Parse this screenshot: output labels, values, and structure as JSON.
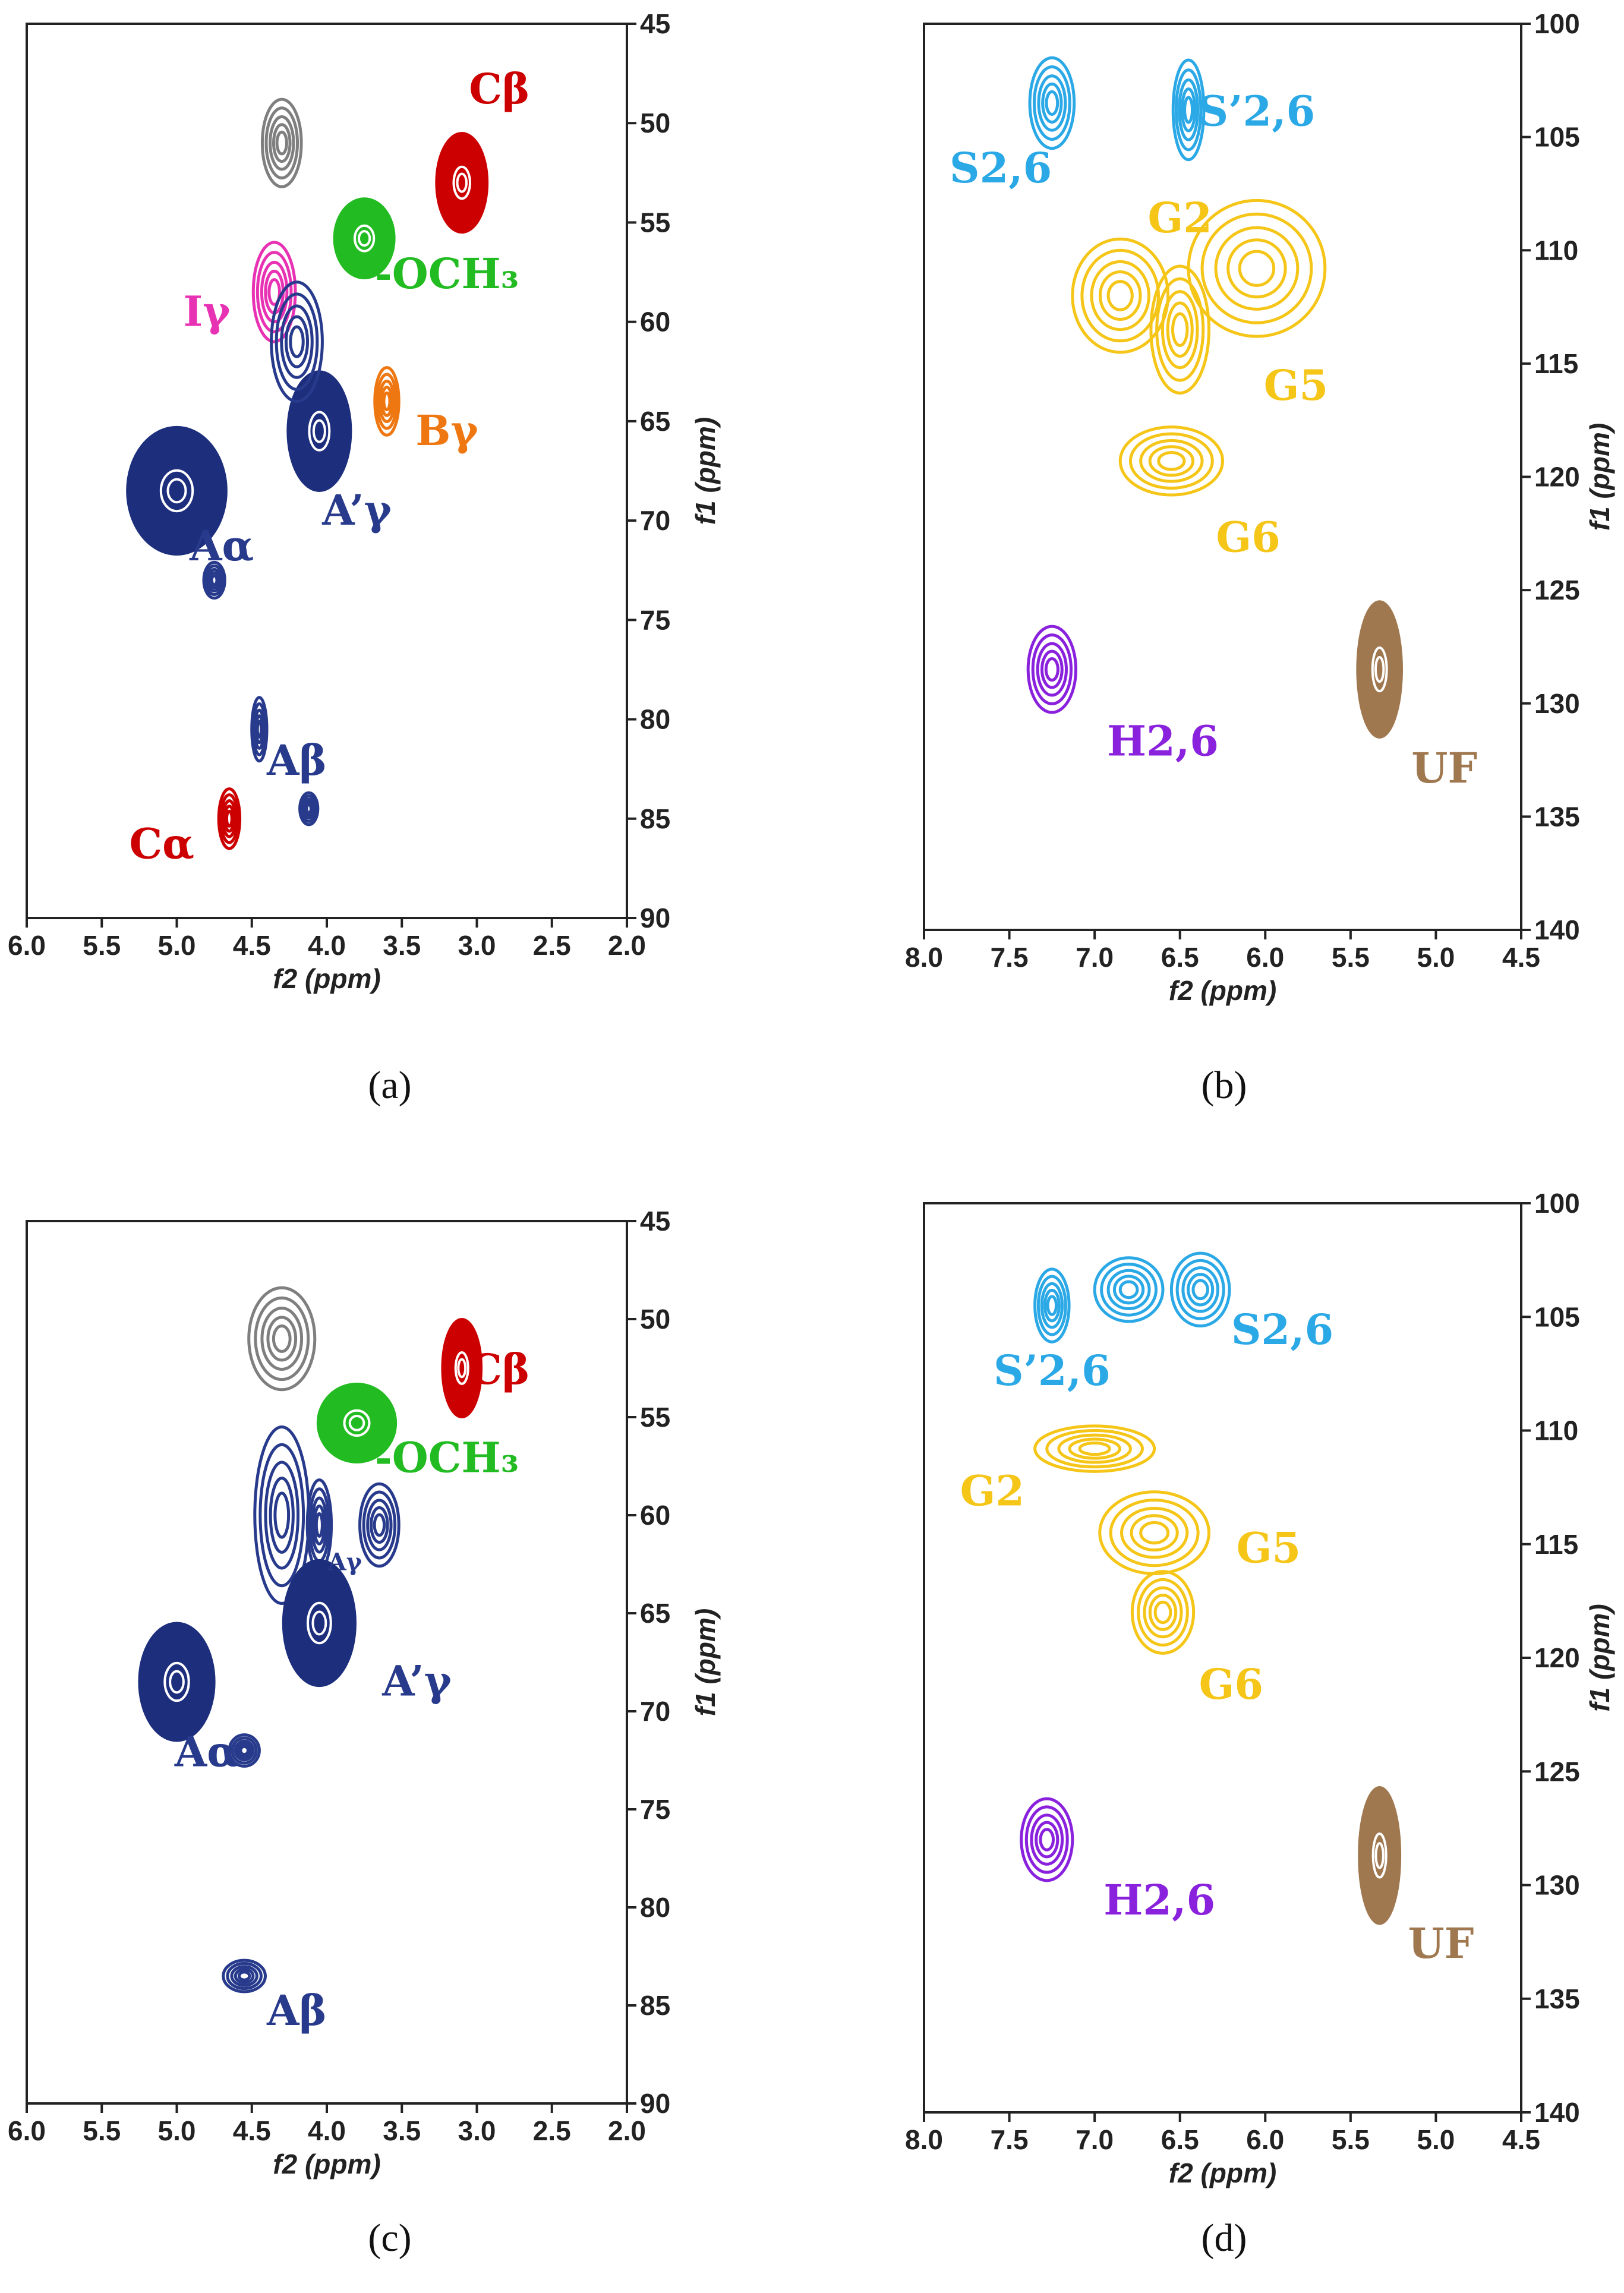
{
  "colors": {
    "gray": "#7f7f7f",
    "red": "#cc0000",
    "green": "#22bb22",
    "magenta": "#e832b4",
    "orange": "#ee7711",
    "navy": "#283a8c",
    "navy_fill": "#1c2e7c",
    "cyan": "#2ba8e6",
    "yellow": "#f5c518",
    "purple": "#8a22dd",
    "brown": "#a07850"
  },
  "chart_data": [
    {
      "type": "contour",
      "caption_letter": "a",
      "xlabel": "f2 (ppm)",
      "ylabel": "f1 (ppm)",
      "xlim": [
        6.0,
        2.0
      ],
      "ylim": [
        90,
        45
      ],
      "xticks": [
        "6.0",
        "5.5",
        "5.0",
        "4.5",
        "4.0",
        "3.5",
        "3.0",
        "2.5",
        "2.0"
      ],
      "yticks": [
        "45",
        "50",
        "55",
        "60",
        "65",
        "70",
        "75",
        "80",
        "85",
        "90"
      ],
      "peaks": [
        {
          "x": 4.3,
          "y": 51.0,
          "rx": 0.13,
          "ry": 2.2,
          "color": "gray",
          "style": "ring"
        },
        {
          "x": 3.1,
          "y": 53.0,
          "rx": 0.17,
          "ry": 2.5,
          "color": "red",
          "style": "filled"
        },
        {
          "x": 3.75,
          "y": 55.8,
          "rx": 0.2,
          "ry": 2.0,
          "color": "green",
          "style": "filled"
        },
        {
          "x": 4.35,
          "y": 58.5,
          "rx": 0.14,
          "ry": 2.5,
          "color": "magenta",
          "style": "ring"
        },
        {
          "x": 3.6,
          "y": 64.0,
          "rx": 0.08,
          "ry": 1.7,
          "color": "orange",
          "style": "ring"
        },
        {
          "x": 4.05,
          "y": 65.5,
          "rx": 0.21,
          "ry": 3.0,
          "color": "navy",
          "style": "filled"
        },
        {
          "x": 4.2,
          "y": 61.0,
          "rx": 0.17,
          "ry": 3.0,
          "color": "navy",
          "style": "ring"
        },
        {
          "x": 5.0,
          "y": 68.5,
          "rx": 0.33,
          "ry": 3.2,
          "color": "navy",
          "style": "filled"
        },
        {
          "x": 4.75,
          "y": 73.0,
          "rx": 0.07,
          "ry": 0.9,
          "color": "navy",
          "style": "ring"
        },
        {
          "x": 4.45,
          "y": 80.5,
          "rx": 0.05,
          "ry": 1.6,
          "color": "navy",
          "style": "ring"
        },
        {
          "x": 4.12,
          "y": 84.5,
          "rx": 0.06,
          "ry": 0.8,
          "color": "navy",
          "style": "ring"
        },
        {
          "x": 4.65,
          "y": 85.0,
          "rx": 0.07,
          "ry": 1.5,
          "color": "red",
          "style": "ring"
        }
      ],
      "labels": [
        {
          "text": "Cβ",
          "x": 2.85,
          "y": 49.0,
          "color": "red"
        },
        {
          "text": "-OCH₃",
          "x": 3.2,
          "y": 58.3,
          "color": "green"
        },
        {
          "text": "Iγ",
          "x": 4.8,
          "y": 60.2,
          "color": "magenta"
        },
        {
          "text": "Bγ",
          "x": 3.2,
          "y": 66.2,
          "color": "orange"
        },
        {
          "text": "A’γ",
          "x": 3.8,
          "y": 70.2,
          "color": "navy"
        },
        {
          "text": "Aα",
          "x": 4.7,
          "y": 72.0,
          "color": "navy"
        },
        {
          "text": "Aβ",
          "x": 4.2,
          "y": 82.8,
          "color": "navy"
        },
        {
          "text": "Cα",
          "x": 5.1,
          "y": 87.0,
          "color": "red"
        }
      ]
    },
    {
      "type": "contour",
      "caption_letter": "b",
      "xlabel": "f2 (ppm)",
      "ylabel": "f1 (ppm)",
      "xlim": [
        8.0,
        4.5
      ],
      "ylim": [
        140,
        100
      ],
      "xticks": [
        "8.0",
        "7.5",
        "7.0",
        "6.5",
        "6.0",
        "5.5",
        "5.0",
        "4.5"
      ],
      "yticks": [
        "100",
        "105",
        "110",
        "115",
        "120",
        "125",
        "130",
        "135",
        "140"
      ],
      "peaks": [
        {
          "x": 7.25,
          "y": 103.5,
          "rx": 0.13,
          "ry": 2.0,
          "color": "cyan",
          "style": "ring"
        },
        {
          "x": 6.45,
          "y": 103.8,
          "rx": 0.09,
          "ry": 2.2,
          "color": "cyan",
          "style": "ring"
        },
        {
          "x": 6.85,
          "y": 112.0,
          "rx": 0.28,
          "ry": 2.5,
          "color": "yellow",
          "style": "ring"
        },
        {
          "x": 6.5,
          "y": 113.5,
          "rx": 0.17,
          "ry": 2.8,
          "color": "yellow",
          "style": "ring"
        },
        {
          "x": 6.05,
          "y": 110.8,
          "rx": 0.4,
          "ry": 3.0,
          "color": "yellow",
          "style": "ring"
        },
        {
          "x": 6.55,
          "y": 119.3,
          "rx": 0.3,
          "ry": 1.5,
          "color": "yellow",
          "style": "ring"
        },
        {
          "x": 7.25,
          "y": 128.5,
          "rx": 0.14,
          "ry": 1.9,
          "color": "purple",
          "style": "ring"
        },
        {
          "x": 5.33,
          "y": 128.5,
          "rx": 0.13,
          "ry": 3.0,
          "color": "brown",
          "style": "filled"
        }
      ],
      "labels": [
        {
          "text": "S2,6",
          "x": 7.55,
          "y": 107.0,
          "color": "cyan"
        },
        {
          "text": "S’2,6",
          "x": 6.05,
          "y": 104.5,
          "color": "cyan"
        },
        {
          "text": "G2",
          "x": 6.5,
          "y": 109.2,
          "color": "yellow"
        },
        {
          "text": "G5",
          "x": 5.82,
          "y": 116.6,
          "color": "yellow"
        },
        {
          "text": "G6",
          "x": 6.1,
          "y": 123.3,
          "color": "yellow"
        },
        {
          "text": "H2,6",
          "x": 6.6,
          "y": 132.3,
          "color": "purple"
        },
        {
          "text": "UF",
          "x": 4.95,
          "y": 133.5,
          "color": "brown"
        }
      ]
    },
    {
      "type": "contour",
      "caption_letter": "c",
      "xlabel": "f2 (ppm)",
      "ylabel": "f1 (ppm)",
      "xlim": [
        6.0,
        2.0
      ],
      "ylim": [
        90,
        45
      ],
      "xticks": [
        "6.0",
        "5.5",
        "5.0",
        "4.5",
        "4.0",
        "3.5",
        "3.0",
        "2.5",
        "2.0"
      ],
      "yticks": [
        "45",
        "50",
        "55",
        "60",
        "65",
        "70",
        "75",
        "80",
        "85",
        "90"
      ],
      "peaks": [
        {
          "x": 4.3,
          "y": 51.0,
          "rx": 0.22,
          "ry": 2.6,
          "color": "gray",
          "style": "ring"
        },
        {
          "x": 3.1,
          "y": 52.5,
          "rx": 0.13,
          "ry": 2.5,
          "color": "red",
          "style": "filled"
        },
        {
          "x": 3.8,
          "y": 55.3,
          "rx": 0.26,
          "ry": 2.0,
          "color": "green",
          "style": "filled"
        },
        {
          "x": 4.3,
          "y": 60.0,
          "rx": 0.18,
          "ry": 4.5,
          "color": "navy",
          "style": "ring"
        },
        {
          "x": 4.05,
          "y": 60.5,
          "rx": 0.08,
          "ry": 2.3,
          "color": "navy",
          "style": "ring"
        },
        {
          "x": 3.65,
          "y": 60.5,
          "rx": 0.13,
          "ry": 2.1,
          "color": "navy",
          "style": "ring"
        },
        {
          "x": 4.05,
          "y": 65.5,
          "rx": 0.24,
          "ry": 3.2,
          "color": "navy",
          "style": "filled"
        },
        {
          "x": 5.0,
          "y": 68.5,
          "rx": 0.25,
          "ry": 3.0,
          "color": "navy",
          "style": "filled"
        },
        {
          "x": 4.55,
          "y": 72.0,
          "rx": 0.1,
          "ry": 0.8,
          "color": "navy",
          "style": "ring"
        },
        {
          "x": 4.55,
          "y": 83.5,
          "rx": 0.14,
          "ry": 0.8,
          "color": "navy",
          "style": "ring"
        }
      ],
      "labels": [
        {
          "text": "Cβ",
          "x": 2.85,
          "y": 53.3,
          "color": "red"
        },
        {
          "text": "-OCH₃",
          "x": 3.2,
          "y": 57.8,
          "color": "green"
        },
        {
          "text": "Aγ",
          "x": 3.88,
          "y": 62.8,
          "color": "navy",
          "small": true
        },
        {
          "text": "A’γ",
          "x": 3.4,
          "y": 69.2,
          "color": "navy"
        },
        {
          "text": "Aα",
          "x": 4.8,
          "y": 72.8,
          "color": "navy"
        },
        {
          "text": "Aβ",
          "x": 4.2,
          "y": 86.0,
          "color": "navy"
        }
      ]
    },
    {
      "type": "contour",
      "caption_letter": "d",
      "xlabel": "f2 (ppm)",
      "ylabel": "f1 (ppm)",
      "xlim": [
        8.0,
        4.5
      ],
      "ylim": [
        140,
        100
      ],
      "xticks": [
        "8.0",
        "7.5",
        "7.0",
        "6.5",
        "6.0",
        "5.5",
        "5.0",
        "4.5"
      ],
      "yticks": [
        "100",
        "105",
        "110",
        "115",
        "120",
        "125",
        "130",
        "135",
        "140"
      ],
      "peaks": [
        {
          "x": 7.25,
          "y": 104.5,
          "rx": 0.1,
          "ry": 1.6,
          "color": "cyan",
          "style": "ring"
        },
        {
          "x": 6.8,
          "y": 103.8,
          "rx": 0.2,
          "ry": 1.4,
          "color": "cyan",
          "style": "ring"
        },
        {
          "x": 6.38,
          "y": 103.8,
          "rx": 0.17,
          "ry": 1.6,
          "color": "cyan",
          "style": "ring"
        },
        {
          "x": 7.0,
          "y": 110.8,
          "rx": 0.35,
          "ry": 1.0,
          "color": "yellow",
          "style": "ring"
        },
        {
          "x": 6.65,
          "y": 114.5,
          "rx": 0.32,
          "ry": 1.8,
          "color": "yellow",
          "style": "ring"
        },
        {
          "x": 6.6,
          "y": 118.0,
          "rx": 0.18,
          "ry": 1.8,
          "color": "yellow",
          "style": "ring"
        },
        {
          "x": 7.28,
          "y": 128.0,
          "rx": 0.15,
          "ry": 1.8,
          "color": "purple",
          "style": "ring"
        },
        {
          "x": 5.33,
          "y": 128.7,
          "rx": 0.12,
          "ry": 3.0,
          "color": "brown",
          "style": "filled"
        }
      ],
      "labels": [
        {
          "text": "S’2,6",
          "x": 7.25,
          "y": 108.0,
          "color": "cyan"
        },
        {
          "text": "S2,6",
          "x": 5.9,
          "y": 106.2,
          "color": "cyan"
        },
        {
          "text": "G2",
          "x": 7.6,
          "y": 113.3,
          "color": "yellow"
        },
        {
          "text": "G5",
          "x": 5.98,
          "y": 115.8,
          "color": "yellow"
        },
        {
          "text": "G6",
          "x": 6.2,
          "y": 121.8,
          "color": "yellow"
        },
        {
          "text": "H2,6",
          "x": 6.62,
          "y": 131.3,
          "color": "purple"
        },
        {
          "text": "UF",
          "x": 4.97,
          "y": 133.2,
          "color": "brown"
        }
      ]
    }
  ],
  "captions": [
    "(a)",
    "(b)",
    "(c)",
    "(d)"
  ]
}
